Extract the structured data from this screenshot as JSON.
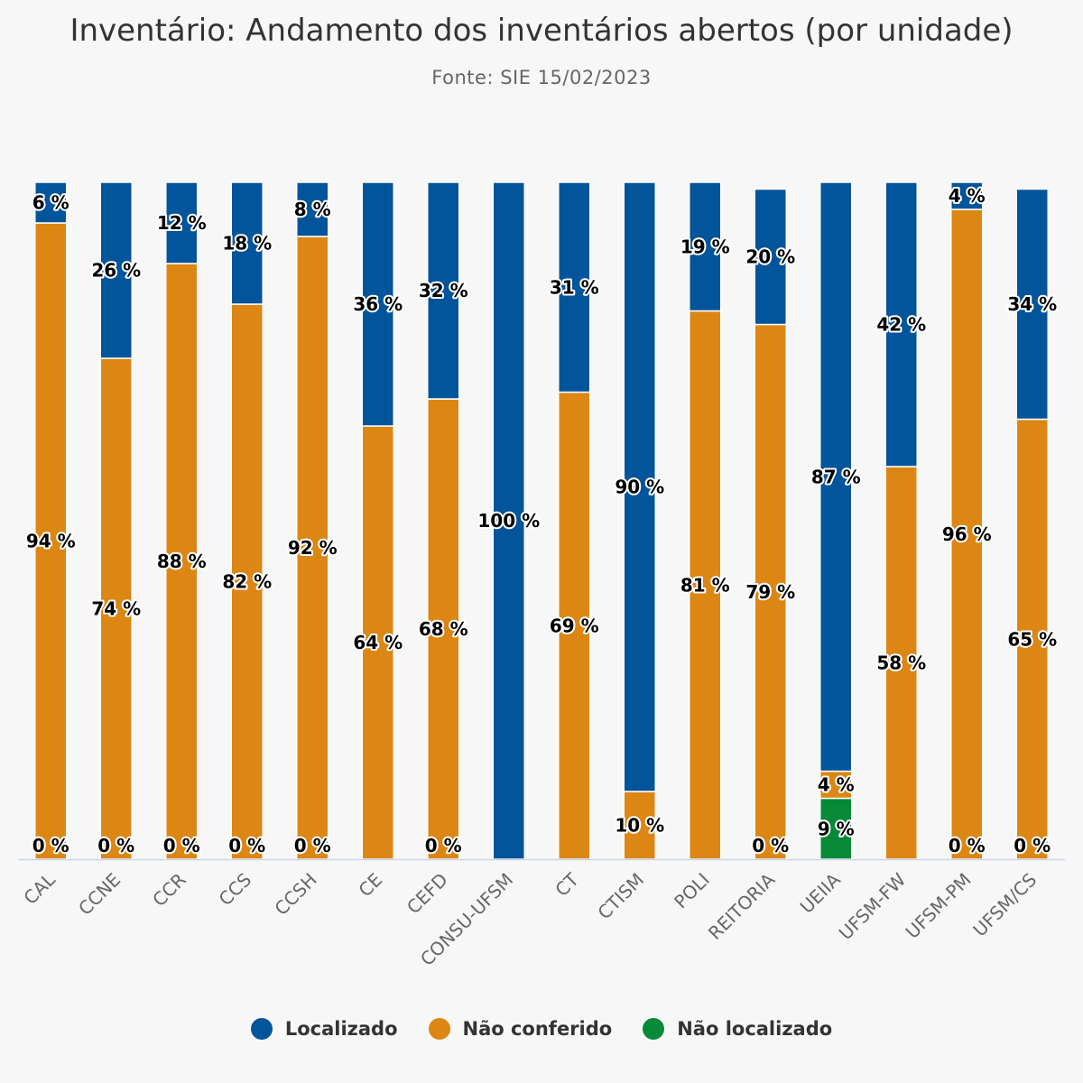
{
  "chart_data": {
    "type": "bar",
    "stacked": true,
    "normalized": "percent",
    "title": "Inventário: Andamento dos inventários abertos (por unidade)",
    "subtitle": "Fonte: SIE 15/02/2023",
    "xlabel": "",
    "ylabel": "",
    "ylim": [
      0,
      100
    ],
    "grid": false,
    "legend_position": "bottom-center",
    "categories": [
      "CAL",
      "CCNE",
      "CCR",
      "CCS",
      "CCSH",
      "CE",
      "CEFD",
      "CONSU-UFSM",
      "CT",
      "CTISM",
      "POLI",
      "REITORIA",
      "UEIIA",
      "UFSM-FW",
      "UFSM-PM",
      "UFSM/CS"
    ],
    "series": [
      {
        "name": "Localizado",
        "color": "#02549b",
        "values": [
          6,
          26,
          12,
          18,
          8,
          36,
          32,
          100,
          31,
          90,
          19,
          20,
          87,
          42,
          4,
          34
        ],
        "labels_shown": [
          true,
          true,
          true,
          true,
          true,
          true,
          true,
          true,
          true,
          true,
          true,
          true,
          true,
          true,
          true,
          true
        ]
      },
      {
        "name": "Não conferido",
        "color": "#dc8614",
        "values": [
          94,
          74,
          88,
          82,
          92,
          64,
          68,
          0,
          69,
          10,
          81,
          79,
          4,
          58,
          96,
          65
        ],
        "labels_shown": [
          true,
          true,
          true,
          true,
          true,
          true,
          true,
          false,
          true,
          true,
          true,
          true,
          true,
          true,
          true,
          true
        ]
      },
      {
        "name": "Não localizado",
        "color": "#068a38",
        "values": [
          0,
          0,
          0,
          0,
          0,
          0,
          0,
          0,
          0,
          0,
          0,
          0,
          9,
          0,
          0,
          0
        ],
        "labels_shown": [
          true,
          true,
          true,
          true,
          true,
          false,
          true,
          false,
          false,
          false,
          false,
          true,
          true,
          false,
          true,
          true
        ]
      }
    ],
    "label_suffix": " %"
  },
  "legend": {
    "items": [
      {
        "label": "Localizado",
        "color": "#02549b"
      },
      {
        "label": "Não conferido",
        "color": "#dc8614"
      },
      {
        "label": "Não localizado",
        "color": "#068a38"
      }
    ]
  },
  "colors": {
    "axis_line": "#ccd6eb",
    "background": "#f7f7f7"
  }
}
